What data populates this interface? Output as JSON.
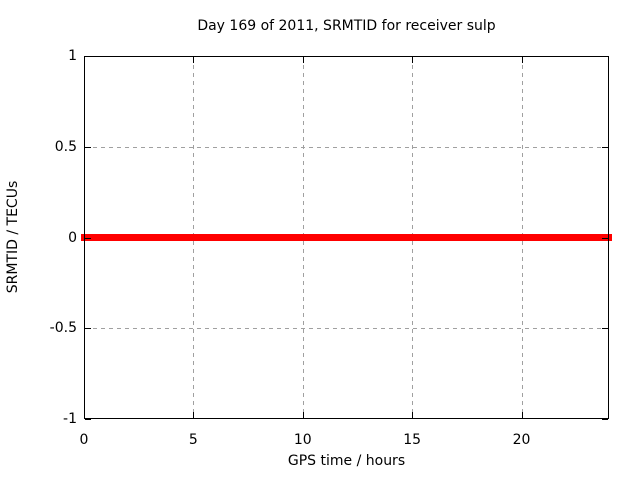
{
  "chart_data": {
    "type": "line",
    "title": "Day 169 of 2011, SRMTID for receiver sulp",
    "xlabel": "GPS time / hours",
    "ylabel": "SRMTID / TECUs",
    "xlim": [
      0,
      24
    ],
    "ylim": [
      -1,
      1
    ],
    "x_ticks": [
      0,
      5,
      10,
      15,
      20
    ],
    "x_tick_labels": [
      "0",
      "5",
      "10",
      "15",
      "20"
    ],
    "y_ticks": [
      1,
      0.5,
      0,
      -0.5,
      -1
    ],
    "y_tick_labels": [
      "1",
      "0.5",
      "0",
      "-0.5",
      "-1"
    ],
    "grid": true,
    "legend_position": "none",
    "series": [
      {
        "name": "SRMTID",
        "color": "#ff0000",
        "style": "thick-line",
        "x": [
          0,
          24
        ],
        "y": [
          0,
          0
        ]
      }
    ]
  },
  "colors": {
    "background": "#ffffff",
    "border": "#000000",
    "gridline": "#a0a0a0",
    "text": "#000000",
    "series": "#ff0000"
  }
}
